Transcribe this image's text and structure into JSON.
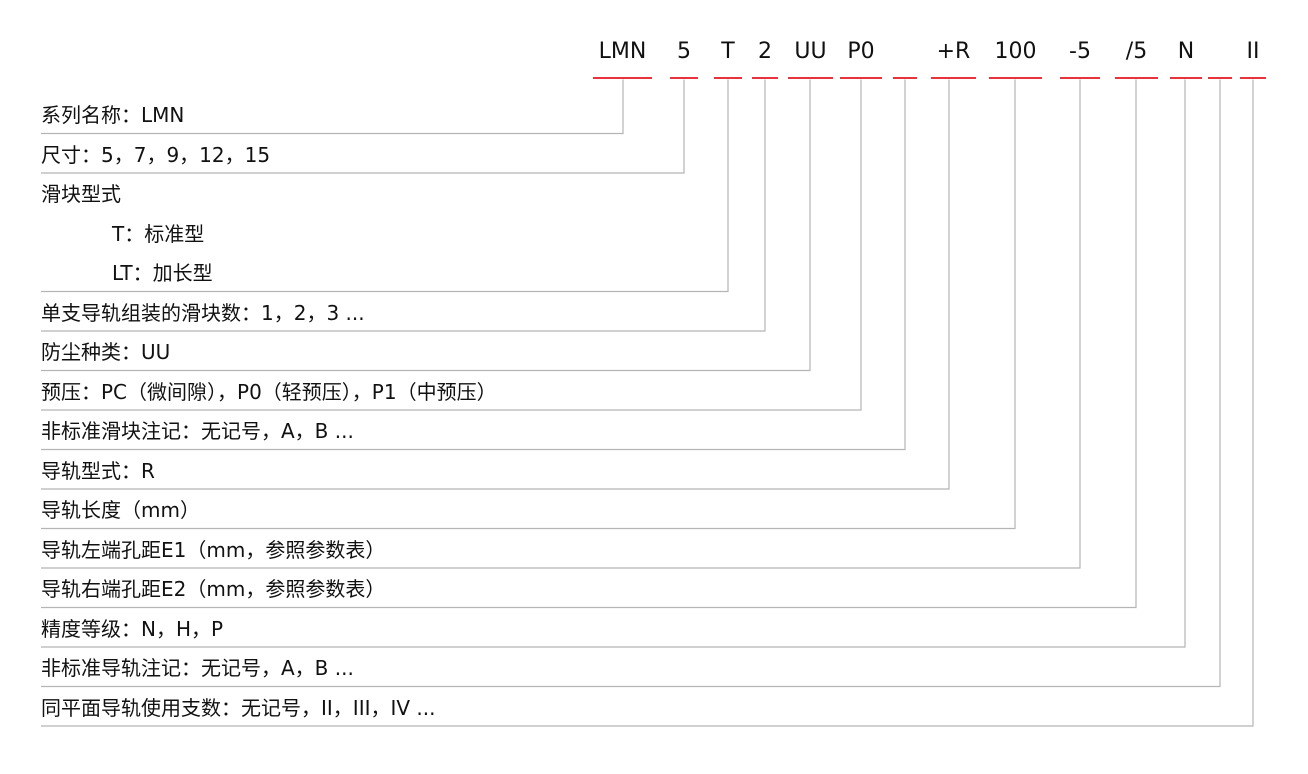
{
  "code_segments": [
    {
      "text": "LMN"
    },
    {
      "text": "5"
    },
    {
      "text": "T"
    },
    {
      "text": "2"
    },
    {
      "text": "UU"
    },
    {
      "text": "P0"
    },
    {
      "text": ""
    },
    {
      "text": "+R"
    },
    {
      "text": "100"
    },
    {
      "text": "-5"
    },
    {
      "text": "/5"
    },
    {
      "text": "N"
    },
    {
      "text": ""
    },
    {
      "text": "II"
    }
  ],
  "descriptions": [
    {
      "text": "系列名称：LMN",
      "segment": 0
    },
    {
      "text": "尺寸：5，7，9，12，15",
      "segment": 1
    },
    {
      "text": "滑块型式"
    },
    {
      "text": "T：标准型",
      "indent": true
    },
    {
      "text": "LT：加长型",
      "indent": true,
      "segment": 2
    },
    {
      "text": "单支导轨组装的滑块数：1，2，3 ...",
      "segment": 3
    },
    {
      "text": "防尘种类：UU",
      "segment": 4
    },
    {
      "text": "预压：PC（微间隙），P0（轻预压），P1（中预压）",
      "segment": 5
    },
    {
      "text": "非标准滑块注记：无记号，A，B ...",
      "segment": 6
    },
    {
      "text": "导轨型式：R",
      "segment": 7
    },
    {
      "text": "导轨长度（mm）",
      "segment": 8
    },
    {
      "text": "导轨左端孔距E1（mm，参照参数表）",
      "segment": 9
    },
    {
      "text": "导轨右端孔距E2（mm，参照参数表）",
      "segment": 10
    },
    {
      "text": "精度等级：N，H，P",
      "segment": 11
    },
    {
      "text": "非标准导轨注记：无记号，A，B ...",
      "segment": 12
    },
    {
      "text": "同平面导轨使用支数：无记号，II，III，IV ...",
      "segment": 13
    }
  ],
  "colors": {
    "accent": "#e8323c",
    "leader_line": "#b5b5b5",
    "text": "#111111"
  }
}
